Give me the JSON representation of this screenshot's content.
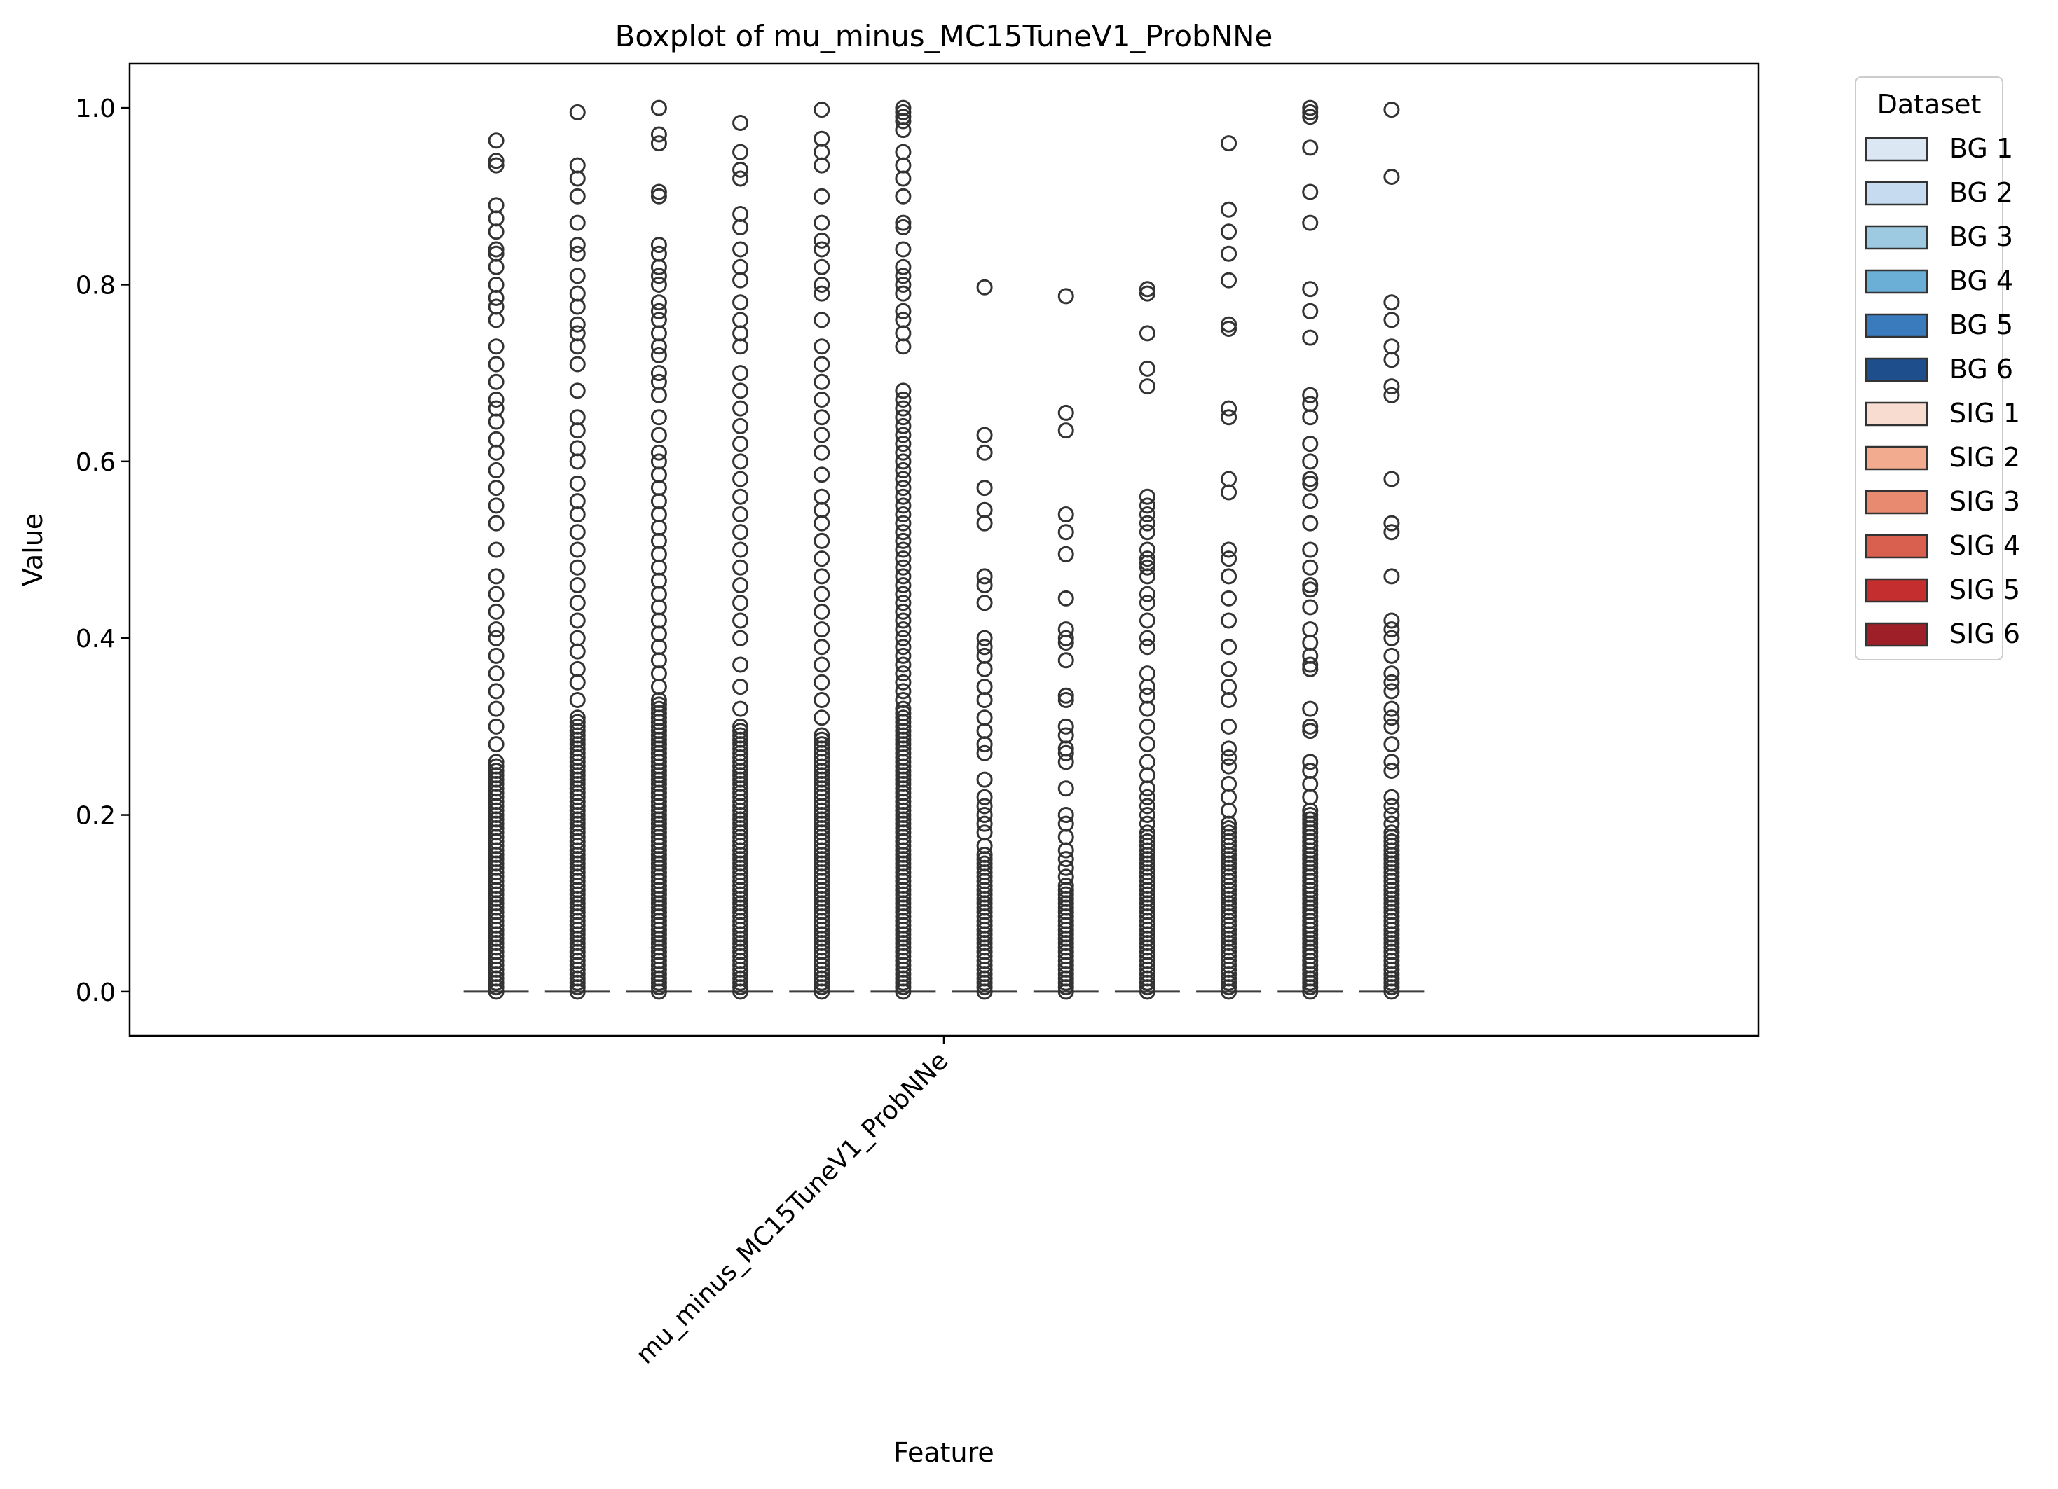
{
  "chart_data": {
    "type": "box",
    "title": "Boxplot of mu_minus_MC15TuneV1_ProbNNe",
    "xlabel": "Feature",
    "ylabel": "Value",
    "categories": [
      "mu_minus_MC15TuneV1_ProbNNe"
    ],
    "ylim": [
      -0.05,
      1.05
    ],
    "yticks": [
      0.0,
      0.2,
      0.4,
      0.6,
      0.8,
      1.0
    ],
    "ytick_labels": [
      "0.0",
      "0.2",
      "0.4",
      "0.6",
      "0.8",
      "1.0"
    ],
    "grid": false,
    "legend": {
      "title": "Dataset",
      "placement": "outside upper right"
    },
    "series": [
      {
        "name": "BG 1",
        "color": "#dbe7f3",
        "box": {
          "q1": 0.0,
          "median": 0.0,
          "q3": 0.0,
          "whisker_low": 0.0,
          "whisker_high": 0.0
        },
        "outlier_max": 0.96,
        "outliers_sparse": [
          0.963,
          0.94,
          0.935,
          0.89,
          0.875,
          0.86,
          0.84,
          0.835,
          0.82,
          0.8,
          0.785,
          0.775,
          0.76,
          0.73,
          0.71,
          0.69,
          0.67,
          0.66,
          0.645,
          0.625,
          0.61,
          0.59,
          0.57,
          0.55,
          0.53,
          0.5,
          0.47,
          0.45,
          0.43,
          0.41,
          0.4,
          0.38,
          0.36,
          0.34,
          0.32,
          0.3,
          0.28,
          0.26
        ]
      },
      {
        "name": "BG 2",
        "color": "#c6dbef",
        "box": {
          "q1": 0.0,
          "median": 0.0,
          "q3": 0.0,
          "whisker_low": 0.0,
          "whisker_high": 0.0
        },
        "outlier_max": 0.995,
        "outliers_sparse": [
          0.995,
          0.935,
          0.92,
          0.9,
          0.87,
          0.845,
          0.835,
          0.81,
          0.79,
          0.775,
          0.755,
          0.745,
          0.73,
          0.71,
          0.68,
          0.65,
          0.635,
          0.615,
          0.6,
          0.575,
          0.555,
          0.54,
          0.52,
          0.5,
          0.48,
          0.46,
          0.44,
          0.42,
          0.4,
          0.385,
          0.365,
          0.35,
          0.33,
          0.31
        ]
      },
      {
        "name": "BG 3",
        "color": "#9ecae1",
        "box": {
          "q1": 0.0,
          "median": 0.0,
          "q3": 0.0,
          "whisker_low": 0.0,
          "whisker_high": 0.0
        },
        "outlier_max": 1.0,
        "outliers_sparse": [
          1.0,
          0.97,
          0.96,
          0.905,
          0.9,
          0.845,
          0.835,
          0.82,
          0.81,
          0.8,
          0.78,
          0.77,
          0.76,
          0.745,
          0.73,
          0.72,
          0.7,
          0.69,
          0.675,
          0.65,
          0.63,
          0.61,
          0.6,
          0.585,
          0.57,
          0.555,
          0.54,
          0.525,
          0.51,
          0.495,
          0.48,
          0.465,
          0.45,
          0.435,
          0.42,
          0.405,
          0.39,
          0.375,
          0.36,
          0.345,
          0.33
        ]
      },
      {
        "name": "BG 4",
        "color": "#6baed6",
        "box": {
          "q1": 0.0,
          "median": 0.0,
          "q3": 0.0,
          "whisker_low": 0.0,
          "whisker_high": 0.0
        },
        "outlier_max": 0.98,
        "outliers_sparse": [
          0.983,
          0.95,
          0.93,
          0.92,
          0.88,
          0.865,
          0.84,
          0.82,
          0.805,
          0.78,
          0.76,
          0.745,
          0.73,
          0.7,
          0.68,
          0.66,
          0.64,
          0.62,
          0.6,
          0.58,
          0.56,
          0.54,
          0.52,
          0.5,
          0.48,
          0.46,
          0.44,
          0.42,
          0.4,
          0.37,
          0.345,
          0.32,
          0.3
        ]
      },
      {
        "name": "BG 5",
        "color": "#3a7bbd",
        "box": {
          "q1": 0.0,
          "median": 0.0,
          "q3": 0.0,
          "whisker_low": 0.0,
          "whisker_high": 0.0
        },
        "outlier_max": 0.998,
        "outliers_sparse": [
          0.998,
          0.965,
          0.95,
          0.935,
          0.9,
          0.87,
          0.85,
          0.84,
          0.82,
          0.8,
          0.79,
          0.76,
          0.73,
          0.71,
          0.69,
          0.67,
          0.65,
          0.63,
          0.61,
          0.585,
          0.56,
          0.545,
          0.53,
          0.51,
          0.49,
          0.47,
          0.45,
          0.43,
          0.41,
          0.39,
          0.37,
          0.35,
          0.33,
          0.31,
          0.29
        ]
      },
      {
        "name": "BG 6",
        "color": "#1f4e8c",
        "box": {
          "q1": 0.0,
          "median": 0.0,
          "q3": 0.0,
          "whisker_low": 0.0,
          "whisker_high": 0.0
        },
        "outlier_max": 1.0,
        "outliers_sparse": [
          1.0,
          0.995,
          0.99,
          0.985,
          0.975,
          0.95,
          0.935,
          0.92,
          0.9,
          0.87,
          0.865,
          0.84,
          0.82,
          0.81,
          0.8,
          0.79,
          0.77,
          0.76,
          0.745,
          0.73,
          0.68,
          0.67,
          0.66,
          0.65,
          0.64,
          0.63,
          0.62,
          0.61,
          0.6,
          0.59,
          0.58,
          0.57,
          0.56,
          0.55,
          0.54,
          0.53,
          0.52,
          0.51,
          0.5,
          0.49,
          0.48,
          0.47,
          0.46,
          0.45,
          0.44,
          0.43,
          0.42,
          0.41,
          0.4,
          0.39,
          0.38,
          0.37,
          0.36,
          0.35,
          0.34,
          0.33,
          0.32
        ]
      },
      {
        "name": "SIG 1",
        "color": "#f8dccf",
        "box": {
          "q1": 0.0,
          "median": 0.0,
          "q3": 0.0,
          "whisker_low": 0.0,
          "whisker_high": 0.0
        },
        "outlier_max": 0.8,
        "outliers_sparse": [
          0.797,
          0.63,
          0.61,
          0.57,
          0.545,
          0.53,
          0.47,
          0.46,
          0.44,
          0.4,
          0.39,
          0.38,
          0.365,
          0.345,
          0.33,
          0.31,
          0.295,
          0.28,
          0.27,
          0.24,
          0.22,
          0.21,
          0.2,
          0.19,
          0.18,
          0.165,
          0.155
        ]
      },
      {
        "name": "SIG 2",
        "color": "#f2ab8f",
        "box": {
          "q1": 0.0,
          "median": 0.0,
          "q3": 0.0,
          "whisker_low": 0.0,
          "whisker_high": 0.0
        },
        "outlier_max": 0.79,
        "outliers_sparse": [
          0.787,
          0.655,
          0.635,
          0.54,
          0.52,
          0.495,
          0.445,
          0.41,
          0.4,
          0.395,
          0.375,
          0.335,
          0.33,
          0.3,
          0.29,
          0.275,
          0.27,
          0.26,
          0.23,
          0.2,
          0.19,
          0.175,
          0.16,
          0.15,
          0.14,
          0.13,
          0.12
        ]
      },
      {
        "name": "SIG 3",
        "color": "#e88a70",
        "box": {
          "q1": 0.0,
          "median": 0.0,
          "q3": 0.0,
          "whisker_low": 0.0,
          "whisker_high": 0.0
        },
        "outlier_max": 0.79,
        "outliers_sparse": [
          0.795,
          0.79,
          0.745,
          0.705,
          0.685,
          0.56,
          0.55,
          0.54,
          0.53,
          0.52,
          0.5,
          0.49,
          0.485,
          0.48,
          0.47,
          0.45,
          0.44,
          0.42,
          0.4,
          0.39,
          0.36,
          0.345,
          0.335,
          0.32,
          0.3,
          0.28,
          0.26,
          0.245,
          0.23,
          0.22,
          0.21,
          0.2,
          0.19,
          0.18
        ]
      },
      {
        "name": "SIG 4",
        "color": "#d9604f",
        "box": {
          "q1": 0.0,
          "median": 0.0,
          "q3": 0.0,
          "whisker_low": 0.0,
          "whisker_high": 0.0
        },
        "outlier_max": 0.96,
        "outliers_sparse": [
          0.96,
          0.885,
          0.86,
          0.835,
          0.805,
          0.755,
          0.75,
          0.66,
          0.65,
          0.58,
          0.565,
          0.5,
          0.49,
          0.47,
          0.445,
          0.42,
          0.39,
          0.365,
          0.345,
          0.33,
          0.3,
          0.275,
          0.265,
          0.255,
          0.235,
          0.22,
          0.205,
          0.19
        ]
      },
      {
        "name": "SIG 5",
        "color": "#c42e2e",
        "box": {
          "q1": 0.0,
          "median": 0.0,
          "q3": 0.0,
          "whisker_low": 0.0,
          "whisker_high": 0.0
        },
        "outlier_max": 1.0,
        "outliers_sparse": [
          1.0,
          0.995,
          0.99,
          0.955,
          0.905,
          0.87,
          0.795,
          0.77,
          0.74,
          0.675,
          0.665,
          0.65,
          0.62,
          0.6,
          0.58,
          0.575,
          0.555,
          0.53,
          0.5,
          0.48,
          0.46,
          0.455,
          0.435,
          0.41,
          0.395,
          0.38,
          0.37,
          0.365,
          0.32,
          0.3,
          0.295,
          0.26,
          0.25,
          0.235,
          0.22,
          0.205
        ]
      },
      {
        "name": "SIG 6",
        "color": "#9e1f28",
        "box": {
          "q1": 0.0,
          "median": 0.0,
          "q3": 0.0,
          "whisker_low": 0.0,
          "whisker_high": 0.0
        },
        "outlier_max": 0.998,
        "outliers_sparse": [
          0.998,
          0.922,
          0.78,
          0.76,
          0.73,
          0.715,
          0.685,
          0.675,
          0.58,
          0.53,
          0.52,
          0.47,
          0.42,
          0.41,
          0.4,
          0.38,
          0.36,
          0.35,
          0.34,
          0.32,
          0.31,
          0.3,
          0.28,
          0.26,
          0.25,
          0.22,
          0.21,
          0.2,
          0.19,
          0.18
        ]
      }
    ]
  }
}
